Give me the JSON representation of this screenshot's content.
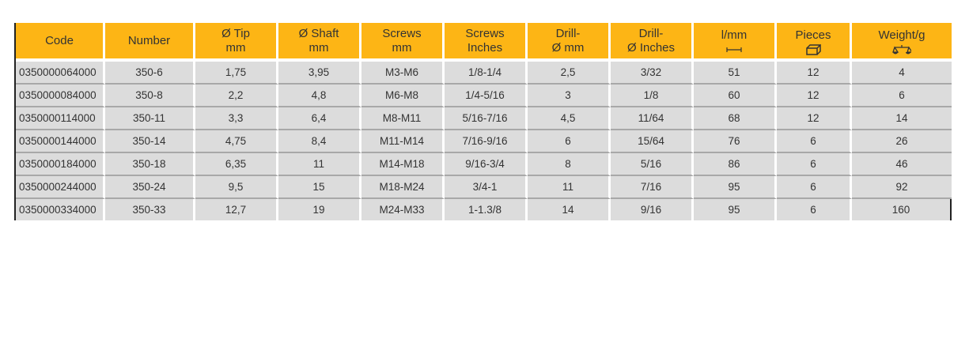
{
  "table": {
    "headers": [
      {
        "line1": "Code",
        "line2": ""
      },
      {
        "line1": "Number",
        "line2": ""
      },
      {
        "line1": "Ø Tip",
        "line2": "mm"
      },
      {
        "line1": "Ø Shaft",
        "line2": "mm"
      },
      {
        "line1": "Screws",
        "line2": "mm"
      },
      {
        "line1": "Screws",
        "line2": "Inches"
      },
      {
        "line1": "Drill-",
        "line2": "Ø mm"
      },
      {
        "line1": "Drill-",
        "line2": "Ø Inches"
      },
      {
        "line1": "l/mm",
        "line2": "",
        "icon": "length-dimension-icon"
      },
      {
        "line1": "Pieces",
        "line2": "",
        "icon": "box-icon"
      },
      {
        "line1": "Weight/g",
        "line2": "",
        "icon": "scale-icon"
      }
    ],
    "rows": [
      [
        "0350000064000",
        "350-6",
        "1,75",
        "3,95",
        "M3-M6",
        "1/8-1/4",
        "2,5",
        "3/32",
        "51",
        "12",
        "4"
      ],
      [
        "0350000084000",
        "350-8",
        "2,2",
        "4,8",
        "M6-M8",
        "1/4-5/16",
        "3",
        "1/8",
        "60",
        "12",
        "6"
      ],
      [
        "0350000114000",
        "350-11",
        "3,3",
        "6,4",
        "M8-M11",
        "5/16-7/16",
        "4,5",
        "11/64",
        "68",
        "12",
        "14"
      ],
      [
        "0350000144000",
        "350-14",
        "4,75",
        "8,4",
        "M11-M14",
        "7/16-9/16",
        "6",
        "15/64",
        "76",
        "6",
        "26"
      ],
      [
        "0350000184000",
        "350-18",
        "6,35",
        "11",
        "M14-M18",
        "9/16-3/4",
        "8",
        "5/16",
        "86",
        "6",
        "46"
      ],
      [
        "0350000244000",
        "350-24",
        "9,5",
        "15",
        "M18-M24",
        "3/4-1",
        "11",
        "7/16",
        "95",
        "6",
        "92"
      ],
      [
        "0350000334000",
        "350-33",
        "12,7",
        "19",
        "M24-M33",
        "1-1.3/8",
        "14",
        "9/16",
        "95",
        "6",
        "160"
      ]
    ],
    "colors": {
      "header": "#fdb515",
      "row": "#dcdcdc"
    }
  }
}
